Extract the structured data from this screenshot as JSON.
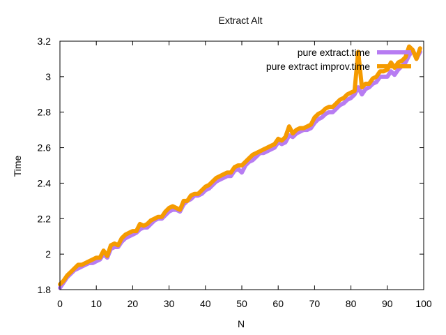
{
  "chart_data": {
    "type": "line",
    "title": "Extract Alt",
    "xlabel": "N",
    "ylabel": "Time",
    "xlim": [
      0,
      100
    ],
    "ylim": [
      1.8,
      3.2
    ],
    "x_ticks": [
      0,
      10,
      20,
      30,
      40,
      50,
      60,
      70,
      80,
      90,
      100
    ],
    "y_ticks": [
      1.8,
      2,
      2.2,
      2.4,
      2.6,
      2.8,
      3,
      3.2
    ],
    "x_tick_labels": [
      "0",
      "10",
      "20",
      "30",
      "40",
      "50",
      "60",
      "70",
      "80",
      "90",
      "100"
    ],
    "y_tick_labels": [
      "1.8",
      "2",
      "2.2",
      "2.4",
      "2.6",
      "2.8",
      "3",
      "3.2"
    ],
    "legend_position": "top-right",
    "grid": false,
    "series": [
      {
        "name": "pure extract.time",
        "color": "#b77cf2",
        "x": [
          0,
          1,
          2,
          3,
          4,
          5,
          6,
          7,
          8,
          9,
          10,
          11,
          12,
          13,
          14,
          15,
          16,
          17,
          18,
          19,
          20,
          21,
          22,
          23,
          24,
          25,
          26,
          27,
          28,
          29,
          30,
          31,
          32,
          33,
          34,
          35,
          36,
          37,
          38,
          39,
          40,
          41,
          42,
          43,
          44,
          45,
          46,
          47,
          48,
          49,
          50,
          51,
          52,
          53,
          54,
          55,
          56,
          57,
          58,
          59,
          60,
          61,
          62,
          63,
          64,
          65,
          66,
          67,
          68,
          69,
          70,
          71,
          72,
          73,
          74,
          75,
          76,
          77,
          78,
          79,
          80,
          81,
          82,
          83,
          84,
          85,
          86,
          87,
          88,
          89,
          90,
          91,
          92,
          93,
          94,
          95,
          96,
          97,
          98,
          99
        ],
        "values": [
          1.81,
          1.84,
          1.87,
          1.89,
          1.91,
          1.92,
          1.93,
          1.94,
          1.95,
          1.95,
          1.96,
          1.97,
          2.0,
          1.98,
          2.03,
          2.04,
          2.04,
          2.07,
          2.09,
          2.1,
          2.11,
          2.12,
          2.14,
          2.15,
          2.15,
          2.17,
          2.19,
          2.2,
          2.2,
          2.22,
          2.24,
          2.25,
          2.25,
          2.24,
          2.28,
          2.3,
          2.31,
          2.33,
          2.33,
          2.34,
          2.36,
          2.37,
          2.39,
          2.41,
          2.42,
          2.43,
          2.44,
          2.44,
          2.47,
          2.48,
          2.46,
          2.5,
          2.52,
          2.53,
          2.55,
          2.57,
          2.57,
          2.58,
          2.59,
          2.6,
          2.63,
          2.62,
          2.63,
          2.67,
          2.66,
          2.68,
          2.69,
          2.7,
          2.7,
          2.71,
          2.74,
          2.76,
          2.77,
          2.79,
          2.8,
          2.8,
          2.82,
          2.84,
          2.85,
          2.87,
          2.88,
          2.9,
          2.94,
          2.9,
          2.93,
          2.94,
          2.96,
          2.97,
          3.0,
          3.0,
          3.0,
          3.03,
          3.01,
          3.04,
          3.06,
          3.08,
          3.12,
          3.15,
          3.1,
          3.14
        ]
      },
      {
        "name": "pure extract improv.time",
        "color": "#f59b00",
        "x": [
          0,
          1,
          2,
          3,
          4,
          5,
          6,
          7,
          8,
          9,
          10,
          11,
          12,
          13,
          14,
          15,
          16,
          17,
          18,
          19,
          20,
          21,
          22,
          23,
          24,
          25,
          26,
          27,
          28,
          29,
          30,
          31,
          32,
          33,
          34,
          35,
          36,
          37,
          38,
          39,
          40,
          41,
          42,
          43,
          44,
          45,
          46,
          47,
          48,
          49,
          50,
          51,
          52,
          53,
          54,
          55,
          56,
          57,
          58,
          59,
          60,
          61,
          62,
          63,
          64,
          65,
          66,
          67,
          68,
          69,
          70,
          71,
          72,
          73,
          74,
          75,
          76,
          77,
          78,
          79,
          80,
          81,
          82,
          83,
          84,
          85,
          86,
          87,
          88,
          89,
          90,
          91,
          92,
          93,
          94,
          95,
          96,
          97,
          98,
          99
        ],
        "values": [
          1.83,
          1.85,
          1.88,
          1.9,
          1.92,
          1.94,
          1.94,
          1.95,
          1.96,
          1.97,
          1.98,
          1.98,
          2.02,
          1.99,
          2.05,
          2.06,
          2.05,
          2.09,
          2.11,
          2.12,
          2.13,
          2.13,
          2.17,
          2.16,
          2.17,
          2.19,
          2.2,
          2.21,
          2.21,
          2.24,
          2.26,
          2.27,
          2.26,
          2.25,
          2.3,
          2.3,
          2.33,
          2.34,
          2.34,
          2.36,
          2.38,
          2.39,
          2.41,
          2.43,
          2.44,
          2.45,
          2.46,
          2.46,
          2.49,
          2.5,
          2.5,
          2.52,
          2.54,
          2.56,
          2.57,
          2.58,
          2.59,
          2.6,
          2.61,
          2.62,
          2.65,
          2.64,
          2.66,
          2.72,
          2.68,
          2.7,
          2.71,
          2.71,
          2.72,
          2.73,
          2.77,
          2.79,
          2.8,
          2.82,
          2.83,
          2.83,
          2.85,
          2.87,
          2.88,
          2.9,
          2.91,
          2.92,
          3.14,
          2.94,
          2.96,
          2.96,
          2.99,
          3.0,
          3.03,
          3.03,
          3.04,
          3.08,
          3.05,
          3.08,
          3.09,
          3.11,
          3.17,
          3.15,
          3.1,
          3.16
        ]
      }
    ]
  }
}
